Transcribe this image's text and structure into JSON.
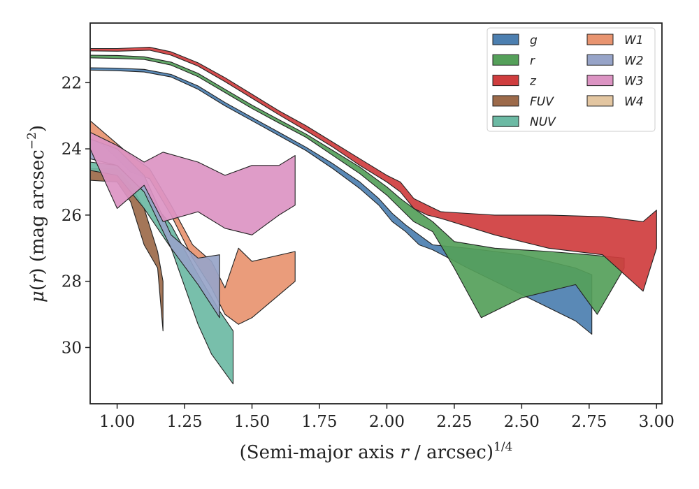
{
  "chart_data": {
    "type": "area",
    "xlabel": "(Semi-major axis r / arcsec)^1/4",
    "xlabel_parts": {
      "pre": "(Semi-major axis ",
      "var": "r",
      "mid": " / arcsec)",
      "sup": "1/4"
    },
    "ylabel": "μ(r) (mag arcsec^−2)",
    "ylabel_parts": {
      "mu": "μ",
      "open": "(",
      "var": "r",
      "rest": ") (mag arcsec",
      "sup": "−2",
      "close": ")"
    },
    "xlim": [
      0.9,
      3.02
    ],
    "ylim": [
      31.7,
      20.2
    ],
    "y_inverted": true,
    "grid": false,
    "legend_position": "top-right",
    "x_ticks": [
      1.0,
      1.25,
      1.5,
      1.75,
      2.0,
      2.25,
      2.5,
      2.75,
      3.0
    ],
    "x_tick_labels": [
      "1.00",
      "1.25",
      "1.50",
      "1.75",
      "2.00",
      "2.25",
      "2.50",
      "2.75",
      "3.00"
    ],
    "y_ticks": [
      22,
      24,
      26,
      28,
      30
    ],
    "y_tick_labels": [
      "22",
      "24",
      "26",
      "28",
      "30"
    ],
    "series": [
      {
        "name": "g",
        "color": "#4c7fb0",
        "upper": [
          [
            0.9,
            21.55
          ],
          [
            1.0,
            21.56
          ],
          [
            1.1,
            21.6
          ],
          [
            1.2,
            21.75
          ],
          [
            1.3,
            22.1
          ],
          [
            1.4,
            22.6
          ],
          [
            1.5,
            23.05
          ],
          [
            1.6,
            23.5
          ],
          [
            1.7,
            23.95
          ],
          [
            1.8,
            24.45
          ],
          [
            1.9,
            25.0
          ],
          [
            1.97,
            25.5
          ],
          [
            2.02,
            25.95
          ],
          [
            2.07,
            26.3
          ],
          [
            2.12,
            26.6
          ],
          [
            2.17,
            26.9
          ],
          [
            2.3,
            27.0
          ],
          [
            2.5,
            27.2
          ],
          [
            2.7,
            27.6
          ],
          [
            2.76,
            27.8
          ]
        ],
        "lower": [
          [
            0.9,
            21.62
          ],
          [
            1.0,
            21.64
          ],
          [
            1.1,
            21.68
          ],
          [
            1.2,
            21.83
          ],
          [
            1.3,
            22.2
          ],
          [
            1.4,
            22.7
          ],
          [
            1.5,
            23.15
          ],
          [
            1.6,
            23.6
          ],
          [
            1.7,
            24.05
          ],
          [
            1.8,
            24.6
          ],
          [
            1.9,
            25.2
          ],
          [
            1.97,
            25.7
          ],
          [
            2.02,
            26.2
          ],
          [
            2.07,
            26.5
          ],
          [
            2.12,
            26.9
          ],
          [
            2.17,
            27.05
          ],
          [
            2.3,
            27.6
          ],
          [
            2.5,
            28.4
          ],
          [
            2.7,
            29.2
          ],
          [
            2.76,
            29.6
          ]
        ]
      },
      {
        "name": "r",
        "color": "#55a05a",
        "upper": [
          [
            0.9,
            21.17
          ],
          [
            1.0,
            21.18
          ],
          [
            1.1,
            21.22
          ],
          [
            1.2,
            21.38
          ],
          [
            1.3,
            21.72
          ],
          [
            1.4,
            22.2
          ],
          [
            1.5,
            22.68
          ],
          [
            1.6,
            23.12
          ],
          [
            1.7,
            23.55
          ],
          [
            1.8,
            24.05
          ],
          [
            1.9,
            24.55
          ],
          [
            2.0,
            25.15
          ],
          [
            2.05,
            25.5
          ],
          [
            2.1,
            25.8
          ],
          [
            2.17,
            26.2
          ],
          [
            2.25,
            26.8
          ],
          [
            2.4,
            27.0
          ],
          [
            2.6,
            27.1
          ],
          [
            2.75,
            27.2
          ],
          [
            2.88,
            27.3
          ]
        ],
        "lower": [
          [
            0.9,
            21.25
          ],
          [
            1.0,
            21.27
          ],
          [
            1.1,
            21.3
          ],
          [
            1.2,
            21.47
          ],
          [
            1.3,
            21.82
          ],
          [
            1.4,
            22.3
          ],
          [
            1.5,
            22.78
          ],
          [
            1.6,
            23.22
          ],
          [
            1.7,
            23.65
          ],
          [
            1.8,
            24.2
          ],
          [
            1.9,
            24.75
          ],
          [
            2.0,
            25.4
          ],
          [
            2.05,
            25.8
          ],
          [
            2.1,
            26.2
          ],
          [
            2.17,
            26.5
          ],
          [
            2.25,
            27.6
          ],
          [
            2.35,
            29.1
          ],
          [
            2.5,
            28.5
          ],
          [
            2.7,
            28.1
          ],
          [
            2.78,
            29.0
          ],
          [
            2.88,
            27.6
          ]
        ]
      },
      {
        "name": "z",
        "color": "#cf3d3e",
        "upper": [
          [
            0.9,
            20.97
          ],
          [
            1.0,
            20.97
          ],
          [
            1.12,
            20.93
          ],
          [
            1.2,
            21.07
          ],
          [
            1.3,
            21.4
          ],
          [
            1.4,
            21.85
          ],
          [
            1.5,
            22.35
          ],
          [
            1.6,
            22.85
          ],
          [
            1.7,
            23.3
          ],
          [
            1.8,
            23.8
          ],
          [
            1.9,
            24.3
          ],
          [
            2.0,
            24.8
          ],
          [
            2.05,
            25.0
          ],
          [
            2.1,
            25.5
          ],
          [
            2.15,
            25.7
          ],
          [
            2.2,
            25.9
          ],
          [
            2.4,
            26.0
          ],
          [
            2.6,
            26.0
          ],
          [
            2.8,
            26.05
          ],
          [
            2.95,
            26.2
          ],
          [
            3.0,
            25.85
          ]
        ],
        "lower": [
          [
            0.9,
            21.04
          ],
          [
            1.0,
            21.05
          ],
          [
            1.12,
            21.02
          ],
          [
            1.2,
            21.17
          ],
          [
            1.3,
            21.5
          ],
          [
            1.4,
            21.97
          ],
          [
            1.5,
            22.47
          ],
          [
            1.6,
            22.97
          ],
          [
            1.7,
            23.45
          ],
          [
            1.8,
            23.95
          ],
          [
            1.9,
            24.5
          ],
          [
            2.0,
            25.0
          ],
          [
            2.05,
            25.3
          ],
          [
            2.1,
            25.8
          ],
          [
            2.15,
            26.0
          ],
          [
            2.2,
            26.1
          ],
          [
            2.4,
            26.6
          ],
          [
            2.6,
            27.0
          ],
          [
            2.8,
            27.2
          ],
          [
            2.95,
            28.3
          ],
          [
            3.0,
            27.0
          ]
        ]
      },
      {
        "name": "FUV",
        "color": "#9c6a4a",
        "upper": [
          [
            0.9,
            24.6
          ],
          [
            1.0,
            24.6
          ],
          [
            1.05,
            25.1
          ],
          [
            1.1,
            25.8
          ],
          [
            1.15,
            27.1
          ],
          [
            1.17,
            28.0
          ]
        ],
        "lower": [
          [
            0.9,
            24.95
          ],
          [
            1.0,
            25.0
          ],
          [
            1.05,
            25.6
          ],
          [
            1.1,
            26.9
          ],
          [
            1.15,
            27.6
          ],
          [
            1.17,
            29.5
          ]
        ]
      },
      {
        "name": "NUV",
        "color": "#6cbaa4",
        "upper": [
          [
            0.9,
            24.4
          ],
          [
            1.0,
            24.5
          ],
          [
            1.1,
            25.3
          ],
          [
            1.2,
            26.3
          ],
          [
            1.3,
            27.8
          ],
          [
            1.38,
            28.9
          ],
          [
            1.43,
            29.5
          ]
        ],
        "lower": [
          [
            0.9,
            24.65
          ],
          [
            1.0,
            24.8
          ],
          [
            1.1,
            25.8
          ],
          [
            1.2,
            27.0
          ],
          [
            1.3,
            29.3
          ],
          [
            1.35,
            30.2
          ],
          [
            1.43,
            31.1
          ]
        ]
      },
      {
        "name": "W1",
        "color": "#e89470",
        "upper": [
          [
            0.9,
            23.15
          ],
          [
            0.95,
            23.5
          ],
          [
            1.05,
            24.2
          ],
          [
            1.12,
            24.6
          ],
          [
            1.2,
            25.7
          ],
          [
            1.28,
            26.9
          ],
          [
            1.35,
            27.4
          ],
          [
            1.4,
            28.2
          ],
          [
            1.45,
            27.0
          ],
          [
            1.5,
            27.4
          ],
          [
            1.66,
            27.1
          ]
        ],
        "lower": [
          [
            0.9,
            23.7
          ],
          [
            0.95,
            23.9
          ],
          [
            1.05,
            24.7
          ],
          [
            1.12,
            24.9
          ],
          [
            1.2,
            26.0
          ],
          [
            1.28,
            27.3
          ],
          [
            1.35,
            28.2
          ],
          [
            1.4,
            29.0
          ],
          [
            1.45,
            29.3
          ],
          [
            1.5,
            29.1
          ],
          [
            1.66,
            28.0
          ]
        ]
      },
      {
        "name": "W2",
        "color": "#97a4c8",
        "upper": [
          [
            0.9,
            23.7
          ],
          [
            1.0,
            24.0
          ],
          [
            1.1,
            24.8
          ],
          [
            1.2,
            26.6
          ],
          [
            1.3,
            27.3
          ],
          [
            1.38,
            27.2
          ]
        ],
        "lower": [
          [
            0.9,
            24.3
          ],
          [
            1.0,
            24.5
          ],
          [
            1.1,
            25.3
          ],
          [
            1.2,
            27.0
          ],
          [
            1.3,
            28.1
          ],
          [
            1.38,
            29.1
          ]
        ]
      },
      {
        "name": "W3",
        "color": "#dc94c3",
        "upper": [
          [
            0.9,
            23.5
          ],
          [
            1.0,
            23.9
          ],
          [
            1.1,
            24.4
          ],
          [
            1.17,
            24.1
          ],
          [
            1.3,
            24.4
          ],
          [
            1.4,
            24.8
          ],
          [
            1.5,
            24.5
          ],
          [
            1.6,
            24.5
          ],
          [
            1.66,
            24.2
          ]
        ],
        "lower": [
          [
            0.9,
            24.0
          ],
          [
            1.0,
            25.8
          ],
          [
            1.1,
            25.1
          ],
          [
            1.17,
            26.2
          ],
          [
            1.3,
            25.9
          ],
          [
            1.4,
            26.4
          ],
          [
            1.5,
            26.6
          ],
          [
            1.6,
            26.0
          ],
          [
            1.66,
            25.7
          ]
        ]
      },
      {
        "name": "W4",
        "color": "#e3c6a1",
        "upper": [],
        "lower": []
      }
    ]
  }
}
